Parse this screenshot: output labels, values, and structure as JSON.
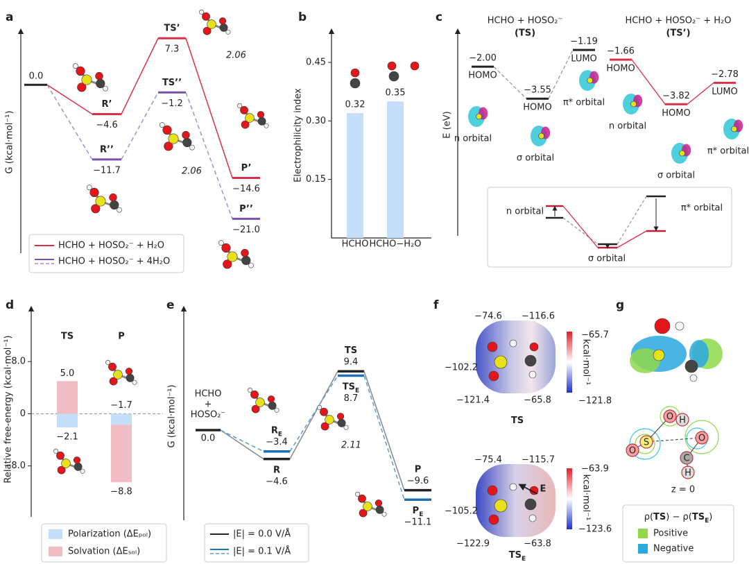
{
  "panel_labels": [
    "a",
    "b",
    "c",
    "d",
    "e",
    "f",
    "g"
  ],
  "chart_data": [
    {
      "type": "energy-profile",
      "y_label": "G (kcal·mol⁻¹)",
      "ylim": [
        -26.4,
        8.4
      ],
      "start": {
        "value": 0.0,
        "value_label": "0.0"
      },
      "series": [
        {
          "name": "HCHO + HOSO₂⁻ + H₂O",
          "color": "#d9304a",
          "line_color": "#d9304a",
          "dash": false,
          "labels": [
            "R’",
            "TS’",
            "P’"
          ],
          "values": [
            -4.6,
            7.3,
            -14.6
          ],
          "value_labels": [
            "−4.6",
            "7.3",
            "−14.6"
          ]
        },
        {
          "name": "HCHO + HOSO₂⁻ + 4H₂O",
          "color": "#7a52a8",
          "line_color": "#a98cd0",
          "dash": true,
          "labels": [
            "R’’",
            "TS’’",
            "P’’"
          ],
          "values": [
            -11.7,
            -1.2,
            -21.0
          ],
          "value_labels": [
            "−11.7",
            "−1.2",
            "−21.0"
          ]
        }
      ],
      "annotations": [
        "2.06",
        "2.06"
      ]
    },
    {
      "type": "bar",
      "y_label": "Electrophilicity index",
      "categories": [
        "HCHO",
        "HCHO−H₂O"
      ],
      "values": [
        0.32,
        0.35
      ],
      "color": "#c5defa",
      "ylim": [
        0,
        0.53
      ],
      "yticks": [
        0.15,
        {
          "value": 0.3,
          "label": "0.30"
        },
        0.45
      ]
    },
    {
      "type": "orbital-levels",
      "y_label": "E (eV)",
      "ylim": [
        -10.2,
        -0.28
      ],
      "groups": [
        {
          "title": "HCHO + HOSO₂⁻",
          "subtitle": "(TS)",
          "color": "#222222",
          "line_color": "#999999",
          "dash": true,
          "values": [
            -2.0,
            -3.55,
            -1.19
          ],
          "value_labels": [
            "−2.00",
            "−3.55",
            "−1.19"
          ],
          "levels": [
            "HOMO",
            "HOMO",
            "LUMO"
          ],
          "orbitals": [
            "n orbital",
            "σ orbital",
            "π* orbital"
          ]
        },
        {
          "title": "HCHO + HOSO₂⁻ + H₂O",
          "subtitle": "(TS’)",
          "color": "#d9304a",
          "line_color": "#d9304a",
          "dash": false,
          "values": [
            -1.66,
            -3.82,
            -2.78
          ],
          "value_labels": [
            "−1.66",
            "−3.82",
            "−2.78"
          ],
          "levels": [
            "HOMO",
            "HOMO",
            "LUMO"
          ],
          "orbitals": [
            "n orbital",
            "σ orbital",
            "π* orbital"
          ]
        }
      ],
      "inset_labels": [
        "n orbital",
        "σ orbital",
        "π* orbital"
      ]
    },
    {
      "type": "stacked-bar",
      "y_label": "Relative free-energy (kcal·mol⁻¹)",
      "categories": [
        "TS",
        "P"
      ],
      "series": [
        {
          "name": "Polarization (ΔEₚₒₗ)",
          "color": "#c5defa",
          "values": [
            -2.1,
            -1.7
          ],
          "value_labels": [
            "−2.1",
            "−1.7"
          ]
        },
        {
          "name": "Solvation (ΔEₛₒₗ)",
          "color": "#f2bcc4",
          "values": [
            5.0,
            -8.8
          ],
          "value_labels": [
            "5.0",
            "−8.8"
          ]
        }
      ],
      "ylim": [
        -15.8,
        16.1
      ],
      "yticks": [
        {
          "value": 8,
          "label": "8.0"
        },
        0,
        {
          "value": -8,
          "label": "−8.0"
        }
      ]
    },
    {
      "type": "energy-profile",
      "y_label": "G (kcal·mol⁻¹)",
      "ylim": [
        -14.4,
        19.4
      ],
      "start": {
        "value": 0.0,
        "value_label": "0.0",
        "label": [
          "HCHO",
          "+",
          "HOSO₂⁻"
        ]
      },
      "series": [
        {
          "name": "|E| = 0.0 V/Å",
          "color": "#222222",
          "line_color": "#888888",
          "dash": false,
          "labels": [
            "R",
            "TS",
            "P"
          ],
          "subscripts": [
            null,
            null,
            null
          ],
          "values": [
            -4.6,
            9.4,
            -9.6
          ],
          "value_labels": [
            "−4.6",
            "9.4",
            "−9.6"
          ]
        },
        {
          "name": "|E| = 0.1 V/Å",
          "color": "#1f6fb4",
          "line_color": "#5b9bd5",
          "dash": true,
          "labels": [
            "R",
            "TS",
            "P"
          ],
          "subscripts": [
            "E",
            "E",
            "E"
          ],
          "values": [
            -3.4,
            8.7,
            -11.1
          ],
          "value_labels": [
            "−3.4",
            "8.7",
            "−11.1"
          ]
        }
      ],
      "annotations": [
        "2.11"
      ]
    }
  ],
  "panel_f": {
    "maps": [
      {
        "values": [
          "−74.6",
          "−116.6",
          "−102.2",
          "−121.4",
          "−65.8"
        ],
        "colorbar": [
          "−65.7",
          "−121.8"
        ],
        "unit": "kcal·mol⁻¹",
        "caption": "TS",
        "caption_sub": null
      },
      {
        "values": [
          "−75.4",
          "−115.7",
          "−105.2",
          "−122.9",
          "−63.8"
        ],
        "colorbar": [
          "−63.9",
          "−123.6"
        ],
        "unit": "kcal·mol⁻¹",
        "caption": "TS",
        "caption_sub": "E",
        "field_label": "E"
      }
    ]
  },
  "panel_g": {
    "atoms": [
      "O",
      "H",
      "O",
      "S",
      "O",
      "C",
      "H"
    ],
    "plane_label": "z = 0",
    "legend_title": [
      "ρ(",
      "TS",
      ") − ρ(",
      "TS",
      "E",
      ")"
    ],
    "legend": [
      {
        "name": "Positive",
        "color": "#8fd94a"
      },
      {
        "name": "Negative",
        "color": "#2aa8e0"
      }
    ]
  }
}
